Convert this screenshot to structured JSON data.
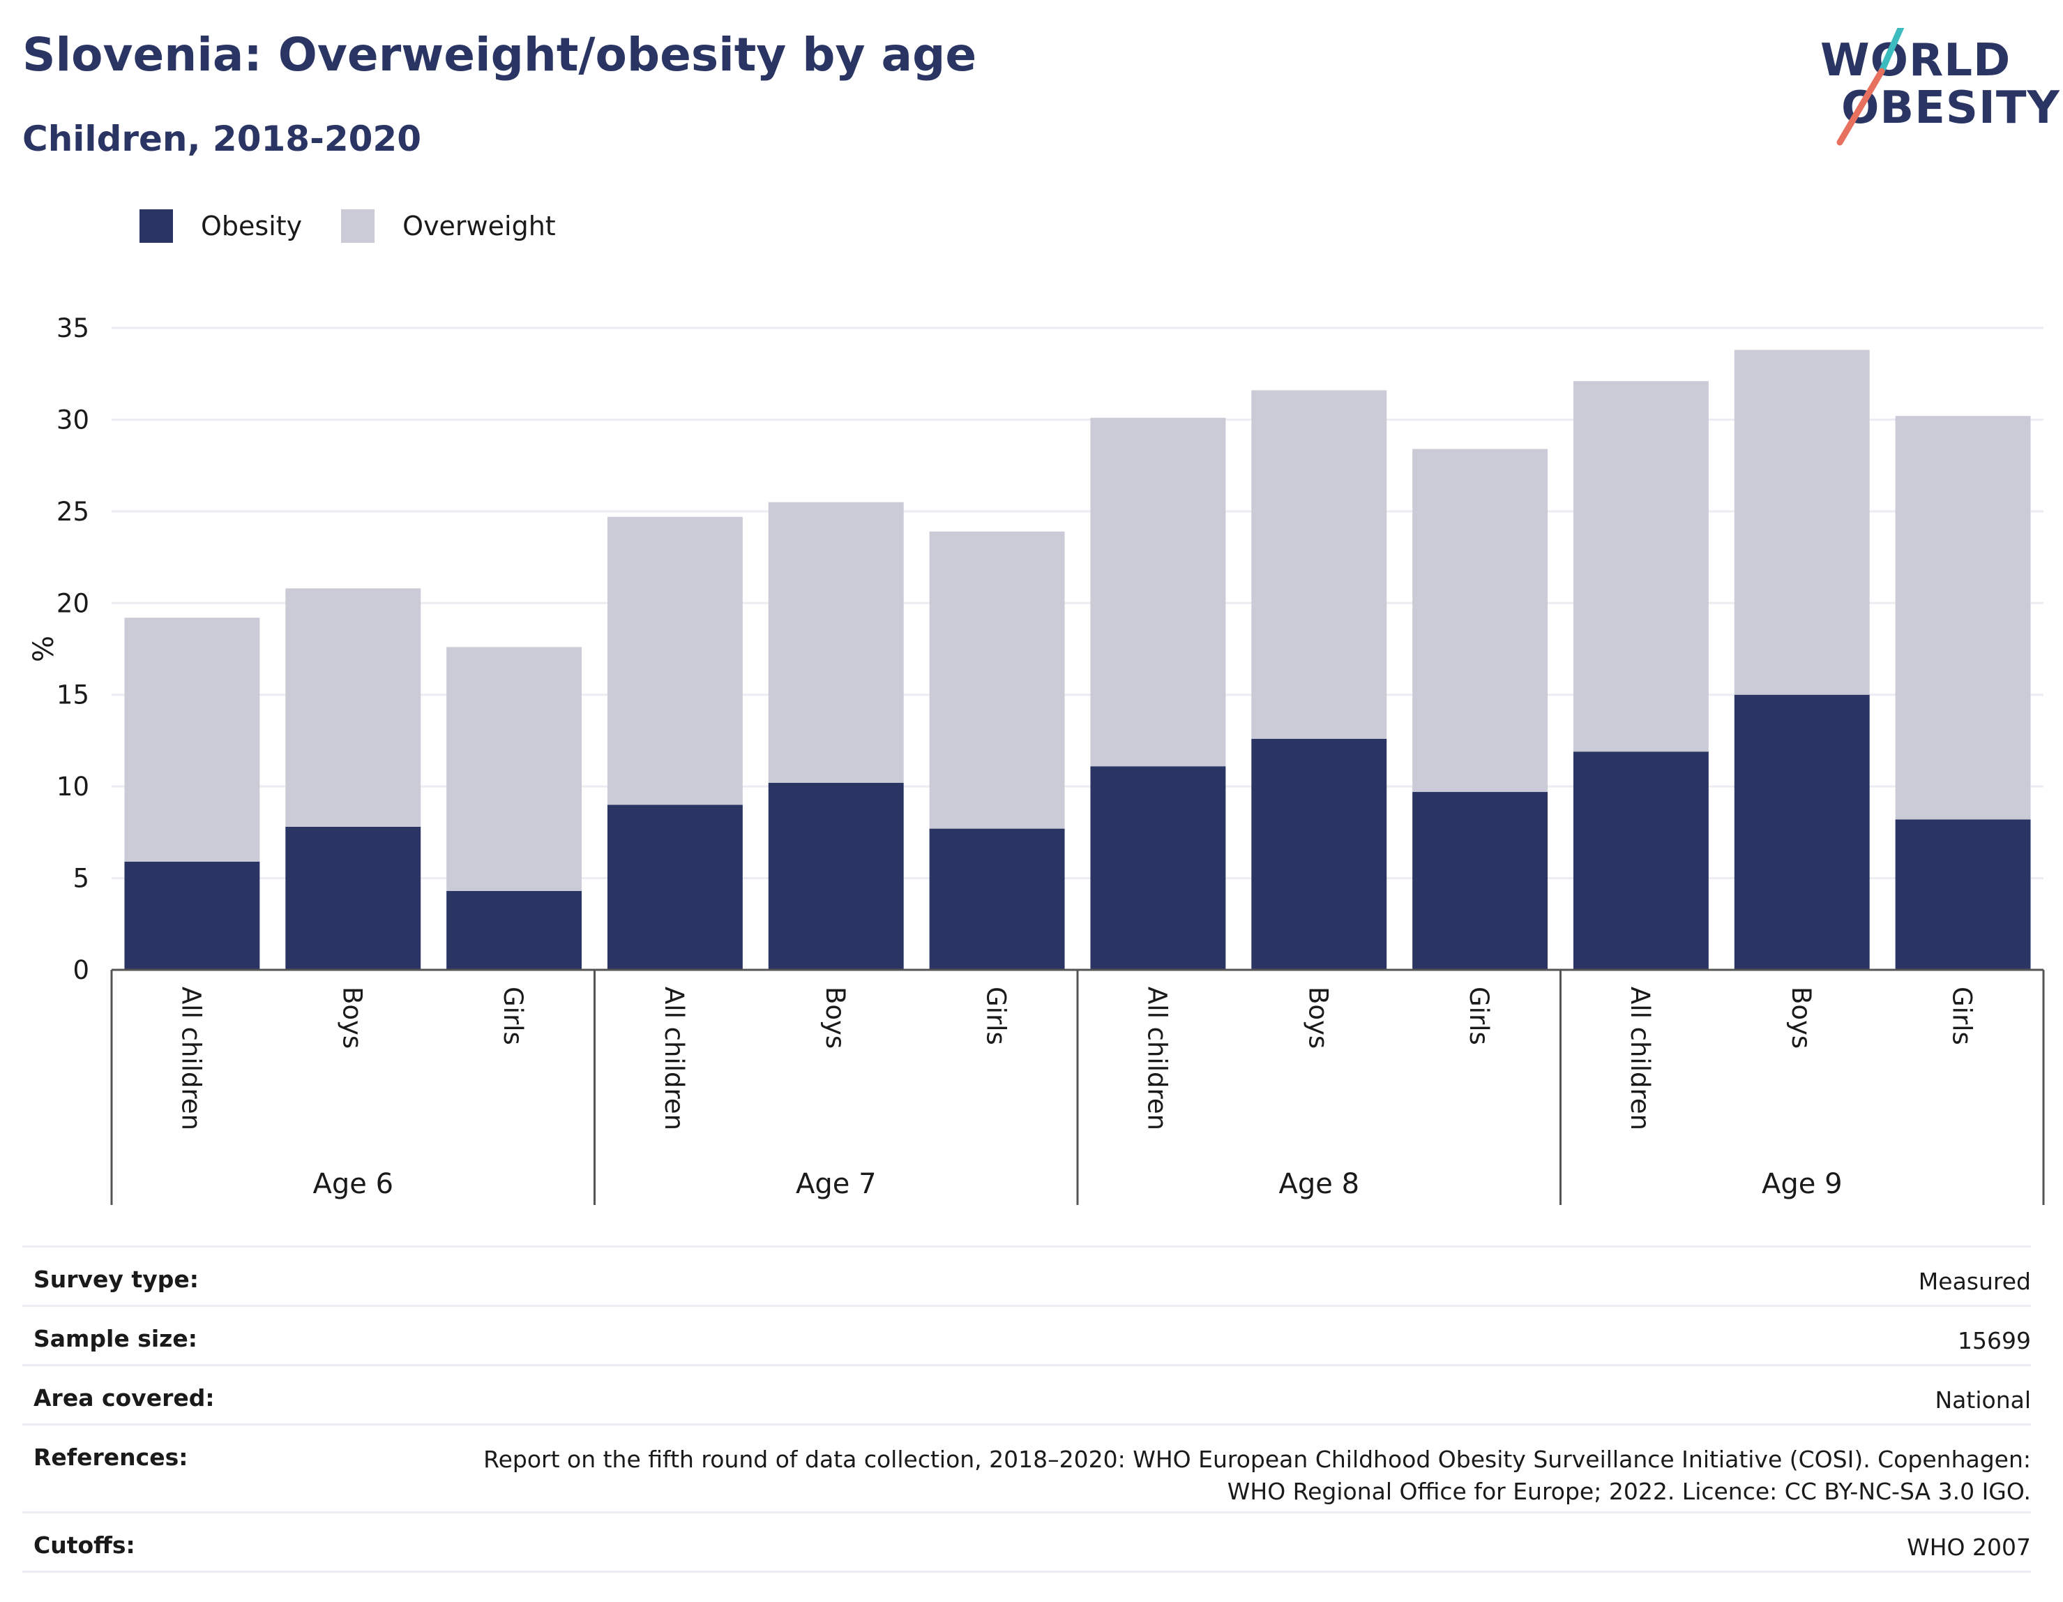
{
  "title": "Slovenia: Overweight/obesity by age",
  "subtitle": "Children, 2018-2020",
  "logo": {
    "line1": "WORLD",
    "line2": "OBESITY"
  },
  "legend": [
    {
      "label": "Obesity",
      "color": "#2a3563"
    },
    {
      "label": "Overweight",
      "color": "#cacbd7"
    }
  ],
  "chart_data": {
    "type": "bar",
    "stacked": true,
    "ylabel": "%",
    "ylim": [
      0,
      35
    ],
    "yticks": [
      0,
      5,
      10,
      15,
      20,
      25,
      30,
      35
    ],
    "grid": true,
    "legend_position": "top-left",
    "groups": [
      "Age 6",
      "Age 7",
      "Age 8",
      "Age 9"
    ],
    "categories": [
      "All children",
      "Boys",
      "Girls",
      "All children",
      "Boys",
      "Girls",
      "All children",
      "Boys",
      "Girls",
      "All children",
      "Boys",
      "Girls"
    ],
    "series": [
      {
        "name": "Obesity",
        "color": "#2a3563",
        "values": [
          5.9,
          7.8,
          4.3,
          9.0,
          10.2,
          7.7,
          11.1,
          12.6,
          9.7,
          11.9,
          15.0,
          8.2
        ]
      },
      {
        "name": "Overweight",
        "color": "#cacbd7",
        "values": [
          13.3,
          13.0,
          13.3,
          15.7,
          15.3,
          16.2,
          19.0,
          19.0,
          18.7,
          20.2,
          18.8,
          22.0
        ]
      }
    ],
    "totals": [
      19.2,
      20.8,
      17.6,
      24.7,
      25.5,
      23.9,
      30.1,
      31.6,
      28.4,
      32.1,
      33.8,
      30.2
    ]
  },
  "info": {
    "survey_type": {
      "label": "Survey type:",
      "value": "Measured"
    },
    "sample_size": {
      "label": "Sample size:",
      "value": "15699"
    },
    "area_covered": {
      "label": "Area covered:",
      "value": "National"
    },
    "references": {
      "label": "References:",
      "value_line1": "Report on the fifth round of data collection, 2018–2020: WHO European Childhood Obesity Surveillance Initiative (COSI). Copenhagen:",
      "value_line2": "WHO Regional Office for Europe; 2022. Licence: CC BY-NC-SA 3.0 IGO."
    },
    "cutoffs": {
      "label": "Cutoffs:",
      "value": "WHO 2007"
    }
  }
}
